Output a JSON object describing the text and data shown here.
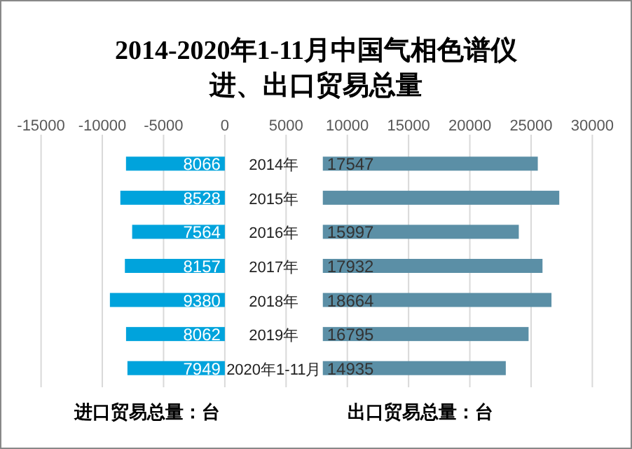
{
  "chart_data": {
    "type": "bar",
    "orientation": "horizontal",
    "title": "2014-2020年1-11月中国气相色谱仪",
    "subtitle": "进、出口贸易总量",
    "categories": [
      "2014年",
      "2015年",
      "2016年",
      "2017年",
      "2018年",
      "2019年",
      "2020年1-11月"
    ],
    "series": [
      {
        "color": "#00a3dc",
        "base": [
          -8066,
          -8528,
          -7564,
          -8157,
          -9380,
          -8062,
          -7949
        ],
        "values": [
          8066,
          8528,
          7564,
          8157,
          9380,
          8062,
          7949
        ],
        "value_labels": [
          "8066",
          "8528",
          "7564",
          "8157",
          "9380",
          "8062",
          "7949"
        ]
      },
      {
        "color": "#5b8fa6",
        "base": [
          8000,
          8000,
          8000,
          8000,
          8000,
          8000,
          8000
        ],
        "values": [
          17547,
          19300,
          15997,
          17932,
          18664,
          16795,
          14935
        ],
        "value_labels": [
          "17547",
          null,
          "15997",
          "17932",
          "18664",
          "16795",
          "14935"
        ]
      }
    ],
    "xlim": [
      -15000,
      30000
    ],
    "xticks": [
      -15000,
      -10000,
      -5000,
      0,
      5000,
      10000,
      15000,
      20000,
      25000,
      30000
    ],
    "grid": "x",
    "annotations": [
      "进口贸易总量：台",
      "出口贸易总量：台"
    ]
  }
}
